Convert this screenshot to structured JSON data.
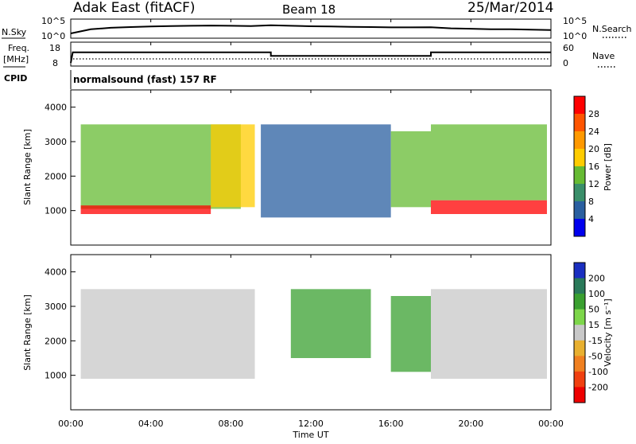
{
  "header": {
    "station": "Adak East (fitACF)",
    "beam": "Beam 18",
    "date": "25/Mar/2014"
  },
  "top_panels": {
    "nsky_label": "N.Sky",
    "nsky_ticks": [
      "10^5",
      "10^0"
    ],
    "nsearch_label": "N.Search",
    "nsearch_ticks": [
      "10^5",
      "10^0"
    ],
    "freq_label_line1": "Freq.",
    "freq_label_line2": "[MHz]",
    "freq_ticks": [
      "18",
      "8"
    ],
    "nave_label": "Nave",
    "nave_ticks": [
      "60",
      "0"
    ],
    "cpid_label": "CPID",
    "cpid_text": "normalsound (fast) 157 RF"
  },
  "colorbars": {
    "power": {
      "label": "Power [dB]",
      "ticks": [
        "28",
        "24",
        "20",
        "16",
        "12",
        "8",
        "4"
      ],
      "colors": [
        "#ff0000",
        "#ff5500",
        "#ff9900",
        "#ffcc00",
        "#66bb33",
        "#3a8f6a",
        "#2a5fa0",
        "#0000ee"
      ]
    },
    "velocity": {
      "label": "Velocity [m s⁻¹]",
      "ticks": [
        "200",
        "100",
        "50",
        "15",
        "-15",
        "-50",
        "-100",
        "-200"
      ],
      "colors": [
        "#1a2fc0",
        "#2a7a5a",
        "#3aa030",
        "#7dd64a",
        "#c8c8c8",
        "#e8b030",
        "#f08020",
        "#f04010",
        "#ee0000"
      ]
    }
  },
  "axes": {
    "ylabel": "Slant Range [km]",
    "xlabel": "Time UT",
    "x_ticks": [
      "00:00",
      "04:00",
      "08:00",
      "12:00",
      "16:00",
      "20:00",
      "00:00"
    ],
    "y_ticks": [
      "4000",
      "3000",
      "2000",
      "1000"
    ]
  },
  "chart_data": [
    {
      "type": "line",
      "panel": "N.Sky",
      "x_range": [
        0,
        24
      ],
      "yscale": "log",
      "ylim": [
        1,
        100000
      ],
      "x": [
        0,
        1,
        2,
        3,
        4,
        5,
        6,
        7,
        8,
        9,
        10,
        11,
        12,
        13,
        14,
        15,
        16,
        17,
        18,
        19,
        20,
        21,
        22,
        23,
        24
      ],
      "values": [
        10,
        200,
        600,
        1000,
        1500,
        2000,
        2500,
        3000,
        2500,
        2000,
        3500,
        2500,
        1800,
        1500,
        1200,
        1000,
        800,
        800,
        900,
        400,
        300,
        200,
        200,
        150,
        120
      ]
    },
    {
      "type": "line",
      "panel": "Freq",
      "x_range": [
        0,
        24
      ],
      "ylim": [
        8,
        18
      ],
      "x": [
        0,
        0.1,
        10,
        10,
        18,
        18,
        24
      ],
      "values": [
        8,
        14,
        14,
        12,
        12,
        14,
        14
      ]
    },
    {
      "type": "heatmap",
      "panel": "Power",
      "x_range_hours": [
        0,
        24
      ],
      "ylim": [
        0,
        4500
      ],
      "clim": [
        0,
        30
      ],
      "colorbar_label": "Power [dB]",
      "features": [
        {
          "t_start": 0.5,
          "t_end": 8.5,
          "range_start": 1050,
          "range_end": 3500,
          "power": 12
        },
        {
          "t_start": 0.5,
          "t_end": 7.0,
          "range_start": 900,
          "range_end": 1150,
          "power": 28
        },
        {
          "t_start": 7.0,
          "t_end": 9.2,
          "range_start": 1100,
          "range_end": 3500,
          "power": 18
        },
        {
          "t_start": 9.5,
          "t_end": 16.0,
          "range_start": 800,
          "range_end": 3500,
          "power": 6
        },
        {
          "t_start": 16.0,
          "t_end": 18.0,
          "range_start": 1100,
          "range_end": 3300,
          "power": 14
        },
        {
          "t_start": 18.0,
          "t_end": 23.8,
          "range_start": 900,
          "range_end": 1300,
          "power": 28
        },
        {
          "t_start": 18.0,
          "t_end": 23.8,
          "range_start": 1300,
          "range_end": 3500,
          "power": 14
        }
      ]
    },
    {
      "type": "heatmap",
      "panel": "Velocity",
      "x_range_hours": [
        0,
        24
      ],
      "ylim": [
        0,
        4500
      ],
      "clim": [
        -200,
        200
      ],
      "colorbar_label": "Velocity [m s⁻¹]",
      "features": [
        {
          "t_start": 0.5,
          "t_end": 9.2,
          "range_start": 900,
          "range_end": 3500,
          "velocity": 0
        },
        {
          "t_start": 11.0,
          "t_end": 15.0,
          "range_start": 1500,
          "range_end": 3500,
          "velocity": 60
        },
        {
          "t_start": 16.0,
          "t_end": 18.0,
          "range_start": 1100,
          "range_end": 3300,
          "velocity": 60
        },
        {
          "t_start": 18.0,
          "t_end": 23.8,
          "range_start": 900,
          "range_end": 3500,
          "velocity": 0
        }
      ]
    }
  ]
}
